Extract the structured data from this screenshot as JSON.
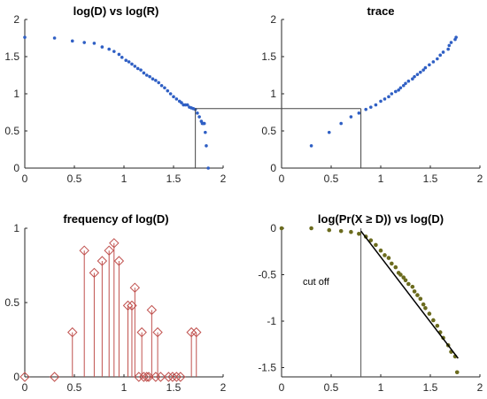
{
  "chart_data": [
    {
      "id": "p1",
      "type": "scatter",
      "title": "log(D) vs log(R)",
      "xlim": [
        0,
        2
      ],
      "ylim": [
        0,
        2
      ],
      "xticks": [
        "0",
        "0.5",
        "1",
        "1.5",
        "2"
      ],
      "yticks": [
        "0",
        "0.5",
        "1",
        "1.5",
        "2"
      ],
      "marker_color": "#2f5fc4",
      "series": [
        {
          "x": [
            0.0,
            0.3,
            0.48,
            0.6,
            0.7,
            0.78,
            0.85,
            0.9,
            0.95,
            0.98,
            1.02,
            1.05,
            1.08,
            1.11,
            1.14,
            1.17,
            1.2,
            1.23,
            1.26,
            1.29,
            1.32,
            1.35,
            1.38,
            1.41,
            1.44,
            1.47,
            1.5,
            1.53,
            1.56,
            1.58,
            1.6,
            1.62,
            1.64,
            1.66,
            1.68,
            1.7,
            1.72,
            1.74,
            1.76,
            1.78,
            1.79,
            1.8,
            1.81,
            1.82,
            1.83,
            1.85
          ],
          "y": [
            1.76,
            1.75,
            1.71,
            1.69,
            1.68,
            1.63,
            1.6,
            1.57,
            1.53,
            1.49,
            1.45,
            1.43,
            1.4,
            1.37,
            1.34,
            1.32,
            1.28,
            1.25,
            1.23,
            1.2,
            1.18,
            1.15,
            1.11,
            1.08,
            1.04,
            1.0,
            0.96,
            0.93,
            0.9,
            0.88,
            0.85,
            0.85,
            0.85,
            0.82,
            0.81,
            0.8,
            0.79,
            0.74,
            0.69,
            0.63,
            0.6,
            0.6,
            0.6,
            0.48,
            0.3,
            0.0
          ]
        }
      ]
    },
    {
      "id": "p2",
      "type": "scatter",
      "title": "trace",
      "xlim": [
        0,
        2
      ],
      "ylim": [
        0,
        2
      ],
      "xticks": [
        "0",
        "0.5",
        "1",
        "1.5",
        "2"
      ],
      "yticks": [
        "0",
        "0.5",
        "1",
        "1.5",
        "2"
      ],
      "marker_color": "#2f5fc4",
      "series": [
        {
          "x": [
            0.3,
            0.48,
            0.6,
            0.7,
            0.78,
            0.85,
            0.9,
            0.95,
            1.0,
            1.04,
            1.08,
            1.11,
            1.15,
            1.18,
            1.2,
            1.23,
            1.25,
            1.28,
            1.32,
            1.34,
            1.37,
            1.4,
            1.43,
            1.45,
            1.49,
            1.53,
            1.57,
            1.6,
            1.63,
            1.68,
            1.69,
            1.71,
            1.75,
            1.76
          ],
          "y": [
            0.3,
            0.48,
            0.6,
            0.69,
            0.74,
            0.79,
            0.82,
            0.85,
            0.9,
            0.93,
            0.96,
            1.0,
            1.03,
            1.05,
            1.08,
            1.11,
            1.14,
            1.17,
            1.2,
            1.23,
            1.26,
            1.29,
            1.32,
            1.35,
            1.39,
            1.43,
            1.47,
            1.52,
            1.56,
            1.6,
            1.65,
            1.69,
            1.73,
            1.76
          ]
        }
      ]
    },
    {
      "id": "p3",
      "type": "bar",
      "title": "frequency of log(D)",
      "xlim": [
        0,
        2
      ],
      "ylim": [
        0,
        1
      ],
      "xticks": [
        "0",
        "0.5",
        "1",
        "1.5",
        "2"
      ],
      "yticks": [
        "0",
        "0.5",
        "1"
      ],
      "marker_color": "#c0504d",
      "series": [
        {
          "x": [
            0.0,
            0.3,
            0.48,
            0.6,
            0.7,
            0.78,
            0.85,
            0.9,
            0.95,
            1.04,
            1.08,
            1.11,
            1.15,
            1.18,
            1.2,
            1.23,
            1.25,
            1.28,
            1.32,
            1.34,
            1.37,
            1.45,
            1.49,
            1.53,
            1.57,
            1.68,
            1.73
          ],
          "y": [
            0.0,
            0.0,
            0.3,
            0.85,
            0.7,
            0.78,
            0.85,
            0.9,
            0.78,
            0.48,
            0.48,
            0.6,
            0.0,
            0.3,
            0.0,
            0.0,
            0.0,
            0.45,
            0.0,
            0.3,
            0.0,
            0.0,
            0.0,
            0.0,
            0.0,
            0.3,
            0.3
          ]
        }
      ]
    },
    {
      "id": "p4",
      "type": "scatter",
      "title": "log(Pr(X ≥ D)) vs log(D)",
      "xlim": [
        0,
        2
      ],
      "ylim": [
        -1.6,
        0
      ],
      "xticks": [
        "0",
        "0.5",
        "1",
        "1.5",
        "2"
      ],
      "yticks": [
        "0",
        "-0.5",
        "-1",
        "-1.5"
      ],
      "marker_color": "#6b6b1e",
      "annotation": "cut off",
      "series": [
        {
          "x": [
            0.0,
            0.3,
            0.48,
            0.6,
            0.7,
            0.78,
            0.85,
            0.9,
            0.95,
            1.0,
            1.04,
            1.08,
            1.11,
            1.15,
            1.18,
            1.2,
            1.23,
            1.25,
            1.28,
            1.32,
            1.34,
            1.37,
            1.4,
            1.43,
            1.45,
            1.49,
            1.53,
            1.57,
            1.6,
            1.63,
            1.68,
            1.71,
            1.75,
            1.77
          ],
          "y": [
            0.0,
            0.0,
            -0.02,
            -0.03,
            -0.04,
            -0.06,
            -0.09,
            -0.13,
            -0.18,
            -0.24,
            -0.29,
            -0.32,
            -0.38,
            -0.42,
            -0.48,
            -0.5,
            -0.53,
            -0.56,
            -0.6,
            -0.63,
            -0.68,
            -0.72,
            -0.76,
            -0.82,
            -0.86,
            -0.92,
            -0.99,
            -1.05,
            -1.12,
            -1.18,
            -1.26,
            -1.33,
            -1.38,
            -1.55
          ]
        },
        {
          "type": "line",
          "x": [
            0.8,
            1.78
          ],
          "y": [
            -0.03,
            -1.4
          ]
        }
      ]
    }
  ]
}
